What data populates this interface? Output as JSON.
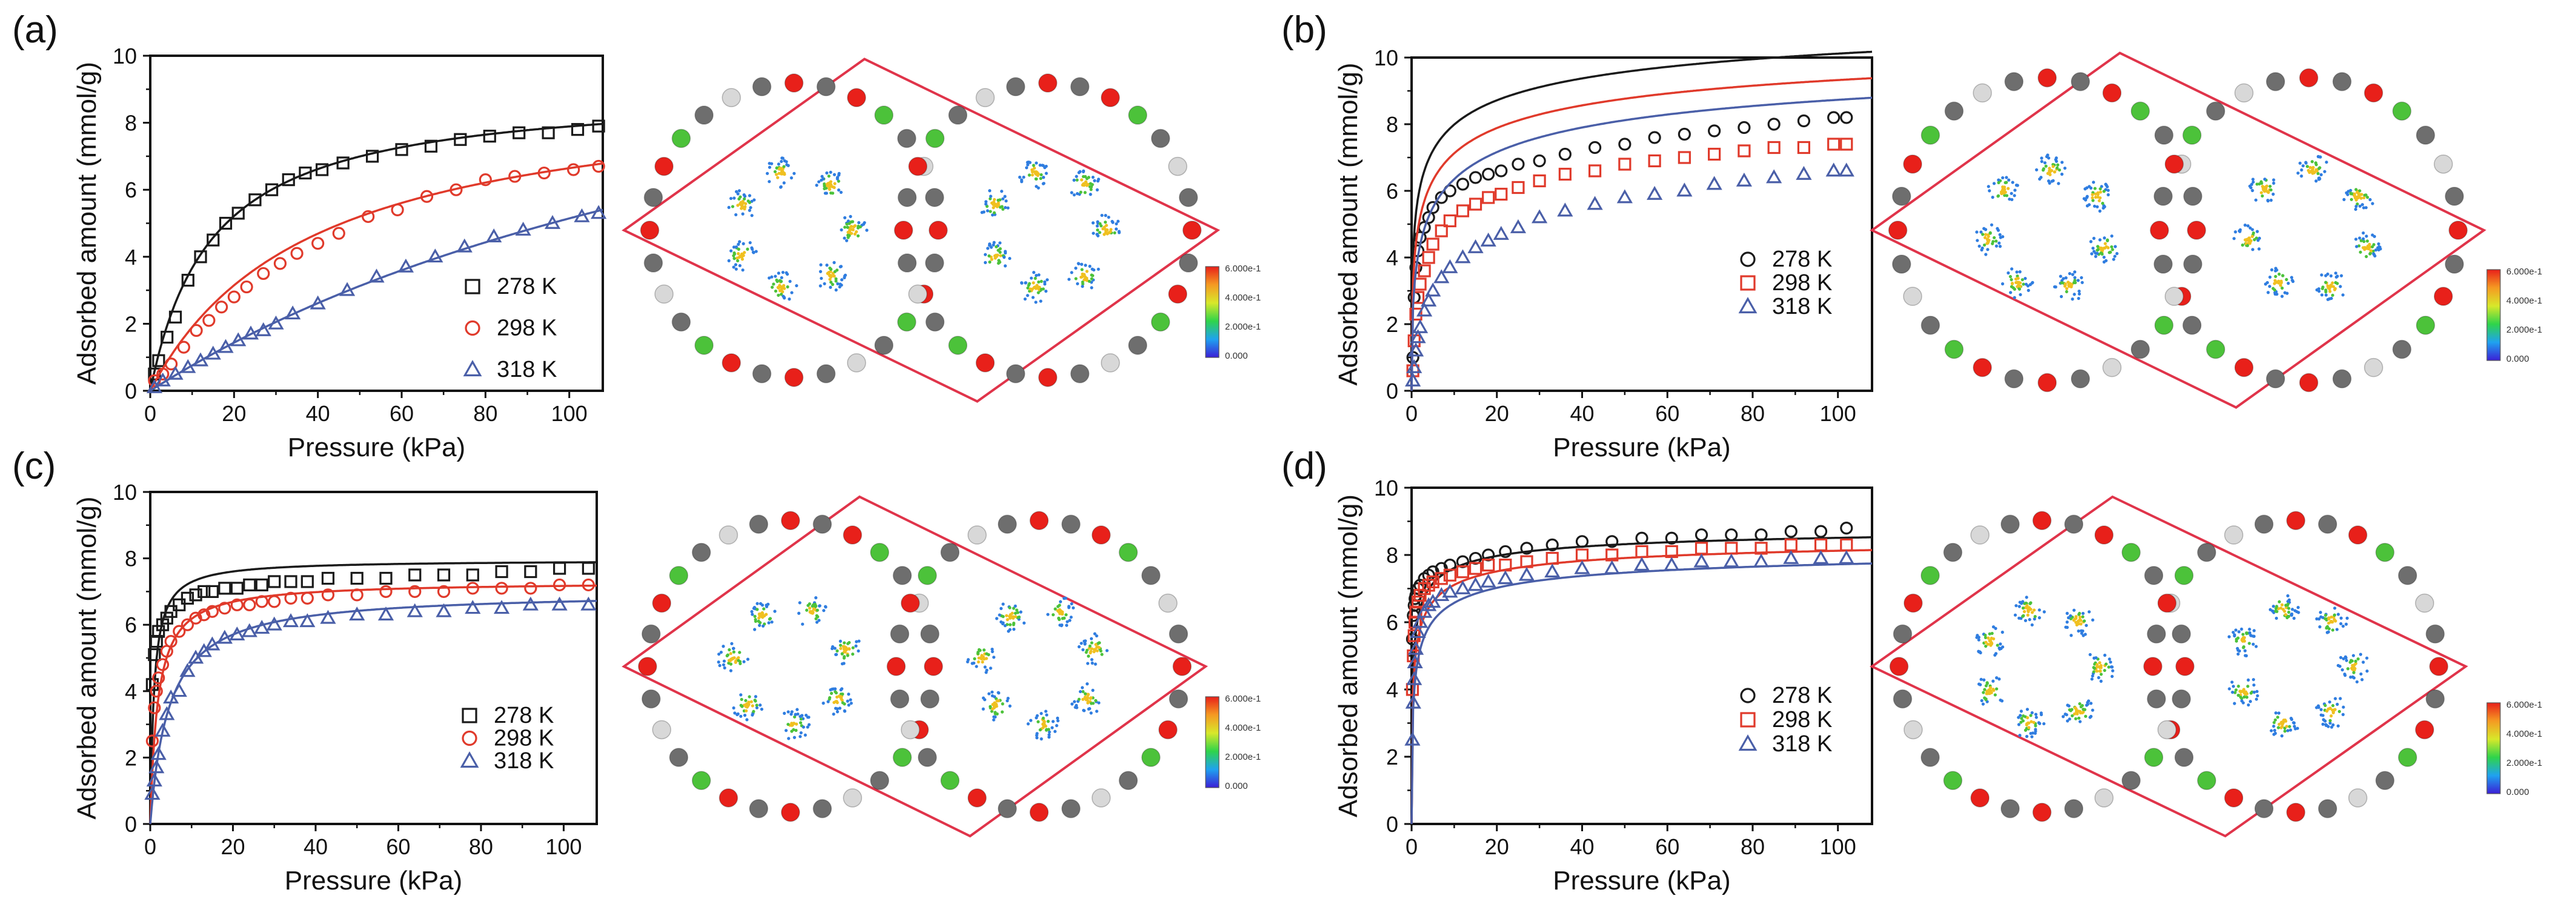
{
  "colors": {
    "s278": "#1a1a1a",
    "s298": "#e03a2b",
    "s318": "#4a5fa8",
    "cell_border": "#e0344a",
    "node_red": "#e8201a",
    "node_gray": "#6e6e6e",
    "node_green": "#4cc23a",
    "node_white": "#d8d8d8",
    "density": "#2f7de0"
  },
  "colorbar": {
    "ticks_a": [
      "6.000e-1",
      "4.000e-1",
      "2.000e-1",
      "0.000"
    ],
    "ticks_b": [
      "6.000e-1",
      "4.000e-1",
      "2.000e-1",
      "0.000"
    ],
    "ticks_c": [
      "6.000e-1",
      "4.000e-1",
      "2.000e-1",
      "0.000"
    ],
    "ticks_d": [
      "6.000e-1",
      "4.000e-1",
      "2.000e-1",
      "0.000"
    ]
  },
  "chart_data": [
    {
      "type": "scatter",
      "panel": "(a)",
      "xlabel": "Pressure (kPa)",
      "ylabel": "Adsorbed amount (mmol/g)",
      "xlim": [
        0,
        108
      ],
      "ylim": [
        0,
        10
      ],
      "xticks": [
        0,
        20,
        40,
        60,
        80,
        100
      ],
      "yticks": [
        0,
        2,
        4,
        6,
        8,
        10
      ],
      "series": [
        {
          "name": "278 K",
          "marker": "square",
          "color": "#1a1a1a",
          "qmax": 9.05,
          "b": 0.068,
          "n": 1,
          "x": [
            1,
            2,
            4,
            6,
            9,
            12,
            15,
            18,
            21,
            25,
            29,
            33,
            37,
            41,
            46,
            53,
            60,
            67,
            74,
            81,
            88,
            95,
            102,
            107
          ],
          "y": [
            0.5,
            0.9,
            1.6,
            2.2,
            3.3,
            4.0,
            4.5,
            5.0,
            5.3,
            5.7,
            6.0,
            6.3,
            6.5,
            6.6,
            6.8,
            7.0,
            7.2,
            7.3,
            7.5,
            7.6,
            7.7,
            7.7,
            7.8,
            7.9
          ]
        },
        {
          "name": "298 K",
          "marker": "circle",
          "color": "#e03a2b",
          "qmax": 9.2,
          "b": 0.026,
          "n": 1,
          "x": [
            1,
            3,
            5,
            8,
            11,
            14,
            17,
            20,
            23,
            27,
            31,
            35,
            40,
            45,
            52,
            59,
            66,
            73,
            80,
            87,
            94,
            101,
            107
          ],
          "y": [
            0.3,
            0.5,
            0.8,
            1.3,
            1.8,
            2.1,
            2.5,
            2.8,
            3.1,
            3.5,
            3.8,
            4.1,
            4.4,
            4.7,
            5.2,
            5.4,
            5.8,
            6.0,
            6.3,
            6.4,
            6.5,
            6.6,
            6.7
          ]
        },
        {
          "name": "318 K",
          "marker": "triangle",
          "color": "#4a5fa8",
          "qmax": 14.5,
          "b": 0.0055,
          "n": 1,
          "x": [
            1,
            3,
            6,
            9,
            12,
            15,
            18,
            21,
            24,
            27,
            30,
            34,
            40,
            47,
            54,
            61,
            68,
            75,
            82,
            89,
            96,
            103,
            107
          ],
          "y": [
            0.1,
            0.3,
            0.5,
            0.7,
            0.9,
            1.1,
            1.3,
            1.5,
            1.7,
            1.8,
            2.0,
            2.3,
            2.6,
            3.0,
            3.4,
            3.7,
            4.0,
            4.3,
            4.6,
            4.8,
            5.0,
            5.2,
            5.3
          ]
        }
      ]
    },
    {
      "type": "scatter",
      "panel": "(b)",
      "xlabel": "Pressure (kPa)",
      "ylabel": "Adsorbed amount (mmol/g)",
      "xlim": [
        0,
        108
      ],
      "ylim": [
        0,
        10
      ],
      "xticks": [
        0,
        20,
        40,
        60,
        80,
        100
      ],
      "yticks": [
        0,
        2,
        4,
        6,
        8,
        10
      ],
      "series": [
        {
          "name": "278 K",
          "marker": "circle",
          "color": "#1a1a1a",
          "qmax": 12.5,
          "b": 0.45,
          "n": 0.38,
          "x": [
            0.3,
            0.6,
            1,
            1.5,
            2,
            3,
            4,
            5,
            7,
            9,
            12,
            15,
            18,
            21,
            25,
            30,
            36,
            43,
            50,
            57,
            64,
            71,
            78,
            85,
            92,
            99,
            102
          ],
          "y": [
            1.0,
            2.8,
            3.7,
            4.2,
            4.6,
            4.9,
            5.2,
            5.5,
            5.8,
            6.0,
            6.2,
            6.4,
            6.5,
            6.6,
            6.8,
            6.9,
            7.1,
            7.3,
            7.4,
            7.6,
            7.7,
            7.8,
            7.9,
            8.0,
            8.1,
            8.2,
            8.2
          ]
        },
        {
          "name": "298 K",
          "marker": "square",
          "color": "#e03a2b",
          "qmax": 11.5,
          "b": 0.32,
          "n": 0.42,
          "x": [
            0.3,
            0.6,
            1,
            1.5,
            2,
            3,
            4,
            5,
            7,
            9,
            12,
            15,
            18,
            21,
            25,
            30,
            36,
            43,
            50,
            57,
            64,
            71,
            78,
            85,
            92,
            99,
            102
          ],
          "y": [
            0.6,
            1.5,
            2.3,
            2.8,
            3.2,
            3.6,
            4.0,
            4.4,
            4.8,
            5.1,
            5.4,
            5.6,
            5.8,
            5.9,
            6.1,
            6.3,
            6.5,
            6.6,
            6.8,
            6.9,
            7.0,
            7.1,
            7.2,
            7.3,
            7.3,
            7.4,
            7.4
          ]
        },
        {
          "name": "318 K",
          "marker": "triangle",
          "color": "#4a5fa8",
          "qmax": 11.0,
          "b": 0.2,
          "n": 0.45,
          "x": [
            0.3,
            0.6,
            1,
            1.5,
            2,
            3,
            4,
            5,
            7,
            9,
            12,
            15,
            18,
            21,
            25,
            30,
            36,
            43,
            50,
            57,
            64,
            71,
            78,
            85,
            92,
            99,
            102
          ],
          "y": [
            0.3,
            0.7,
            1.2,
            1.6,
            1.9,
            2.4,
            2.7,
            3.0,
            3.4,
            3.7,
            4.0,
            4.3,
            4.5,
            4.7,
            4.9,
            5.2,
            5.4,
            5.6,
            5.8,
            5.9,
            6.0,
            6.2,
            6.3,
            6.4,
            6.5,
            6.6,
            6.6
          ]
        }
      ]
    },
    {
      "type": "scatter",
      "panel": "(c)",
      "xlabel": "Pressure (kPa)",
      "ylabel": "Adsorbed amount (mmol/g)",
      "xlim": [
        0,
        108
      ],
      "ylim": [
        0,
        10
      ],
      "xticks": [
        0,
        20,
        40,
        60,
        80,
        100
      ],
      "yticks": [
        0,
        2,
        4,
        6,
        8,
        10
      ],
      "series": [
        {
          "name": "278 K",
          "marker": "square",
          "color": "#1a1a1a",
          "qmax": 7.95,
          "b": 1.1,
          "n": 1,
          "x": [
            0.5,
            1,
            1.5,
            2,
            3,
            4,
            5,
            7,
            9,
            11,
            13,
            15,
            18,
            21,
            24,
            27,
            30,
            34,
            38,
            43,
            50,
            57,
            64,
            71,
            78,
            85,
            92,
            99,
            106
          ],
          "y": [
            4.2,
            5.1,
            5.5,
            5.8,
            6.0,
            6.2,
            6.4,
            6.6,
            6.8,
            6.9,
            7.0,
            7.0,
            7.1,
            7.1,
            7.2,
            7.2,
            7.3,
            7.3,
            7.3,
            7.4,
            7.4,
            7.4,
            7.5,
            7.5,
            7.5,
            7.6,
            7.6,
            7.7,
            7.7
          ]
        },
        {
          "name": "298 K",
          "marker": "circle",
          "color": "#e03a2b",
          "qmax": 7.3,
          "b": 0.55,
          "n": 1,
          "x": [
            0.5,
            1,
            1.5,
            2,
            3,
            4,
            5,
            7,
            9,
            11,
            13,
            15,
            18,
            21,
            24,
            27,
            30,
            34,
            38,
            43,
            50,
            57,
            64,
            71,
            78,
            85,
            92,
            99,
            106
          ],
          "y": [
            2.5,
            3.5,
            4.0,
            4.4,
            4.8,
            5.2,
            5.5,
            5.8,
            6.0,
            6.2,
            6.3,
            6.4,
            6.5,
            6.6,
            6.6,
            6.7,
            6.7,
            6.8,
            6.8,
            6.9,
            6.9,
            7.0,
            7.0,
            7.0,
            7.1,
            7.1,
            7.1,
            7.2,
            7.2
          ]
        },
        {
          "name": "318 K",
          "marker": "triangle",
          "color": "#4a5fa8",
          "qmax": 7.0,
          "b": 0.22,
          "n": 1,
          "x": [
            0.5,
            1,
            1.5,
            2,
            3,
            4,
            5,
            7,
            9,
            11,
            13,
            15,
            18,
            21,
            24,
            27,
            30,
            34,
            38,
            43,
            50,
            57,
            64,
            71,
            78,
            85,
            92,
            99,
            106
          ],
          "y": [
            0.9,
            1.3,
            1.7,
            2.1,
            2.8,
            3.3,
            3.8,
            4.0,
            4.6,
            5.0,
            5.2,
            5.4,
            5.6,
            5.7,
            5.8,
            5.9,
            6.0,
            6.1,
            6.1,
            6.2,
            6.3,
            6.3,
            6.4,
            6.4,
            6.5,
            6.5,
            6.6,
            6.6,
            6.6
          ]
        }
      ]
    },
    {
      "type": "scatter",
      "panel": "(d)",
      "xlabel": "Pressure (kPa)",
      "ylabel": "Adsorbed amount (mmol/g)",
      "xlim": [
        0,
        108
      ],
      "ylim": [
        0,
        10
      ],
      "xticks": [
        0,
        20,
        40,
        60,
        80,
        100
      ],
      "yticks": [
        0,
        2,
        4,
        6,
        8,
        10
      ],
      "series": [
        {
          "name": "278 K",
          "marker": "circle",
          "color": "#1a1a1a",
          "qmax": 9.0,
          "b": 3.0,
          "n": 0.5,
          "x": [
            0.2,
            0.4,
            0.6,
            0.8,
            1,
            1.5,
            2,
            3,
            4,
            5,
            7,
            9,
            12,
            15,
            18,
            22,
            27,
            33,
            40,
            47,
            54,
            61,
            68,
            75,
            82,
            89,
            96,
            102
          ],
          "y": [
            5.5,
            6.2,
            6.5,
            6.7,
            6.8,
            7.0,
            7.1,
            7.3,
            7.4,
            7.5,
            7.6,
            7.7,
            7.8,
            7.9,
            8.0,
            8.1,
            8.2,
            8.3,
            8.4,
            8.4,
            8.5,
            8.5,
            8.6,
            8.6,
            8.6,
            8.7,
            8.7,
            8.8
          ]
        },
        {
          "name": "298 K",
          "marker": "square",
          "color": "#e03a2b",
          "qmax": 8.7,
          "b": 2.0,
          "n": 0.5,
          "x": [
            0.2,
            0.4,
            0.6,
            0.8,
            1,
            1.5,
            2,
            3,
            4,
            5,
            7,
            9,
            12,
            15,
            18,
            22,
            27,
            33,
            40,
            47,
            54,
            61,
            68,
            75,
            82,
            89,
            96,
            102
          ],
          "y": [
            4.0,
            5.0,
            5.6,
            6.0,
            6.3,
            6.6,
            6.8,
            7.0,
            7.1,
            7.2,
            7.3,
            7.4,
            7.5,
            7.6,
            7.7,
            7.7,
            7.8,
            7.9,
            8.0,
            8.0,
            8.1,
            8.1,
            8.2,
            8.2,
            8.2,
            8.3,
            8.3,
            8.3
          ]
        },
        {
          "name": "318 K",
          "marker": "triangle",
          "color": "#4a5fa8",
          "qmax": 8.4,
          "b": 1.3,
          "n": 0.5,
          "x": [
            0.2,
            0.4,
            0.6,
            0.8,
            1,
            1.5,
            2,
            3,
            4,
            5,
            7,
            9,
            12,
            15,
            18,
            22,
            27,
            33,
            40,
            47,
            54,
            61,
            68,
            75,
            82,
            89,
            96,
            102
          ],
          "y": [
            2.5,
            3.6,
            4.3,
            4.8,
            5.2,
            5.7,
            6.0,
            6.3,
            6.5,
            6.6,
            6.8,
            6.9,
            7.0,
            7.1,
            7.2,
            7.3,
            7.4,
            7.5,
            7.6,
            7.6,
            7.7,
            7.7,
            7.8,
            7.8,
            7.8,
            7.9,
            7.9,
            7.9
          ]
        }
      ]
    }
  ]
}
